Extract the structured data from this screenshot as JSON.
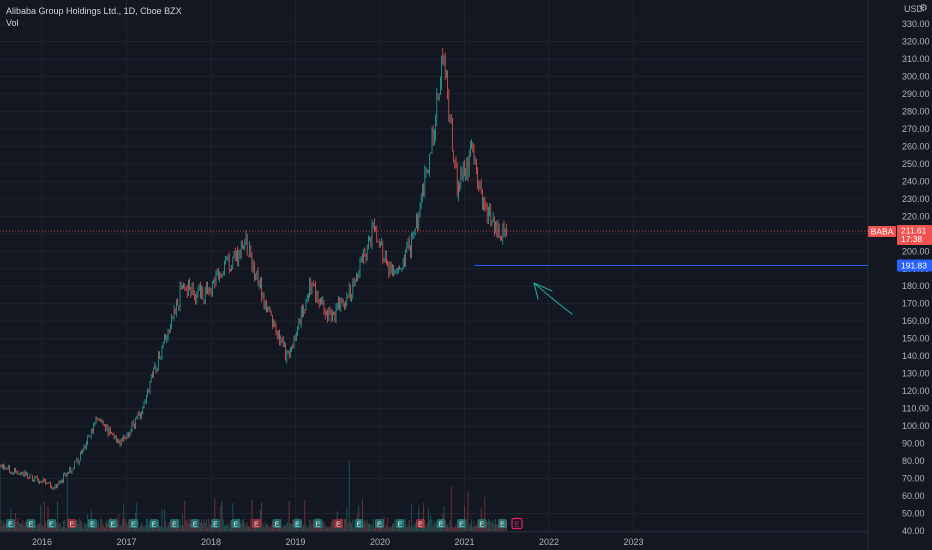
{
  "legend": {
    "title": "Alibaba Group Holdings Ltd., 1D, Cboe BZX",
    "volume_label": "Vol"
  },
  "price_axis": {
    "currency": "USD",
    "ticks": [
      "330.00",
      "320.00",
      "310.00",
      "300.00",
      "290.00",
      "280.00",
      "270.00",
      "260.00",
      "250.00",
      "240.00",
      "230.00",
      "220.00",
      "210.00",
      "200.00",
      "190.00",
      "180.00",
      "170.00",
      "160.00",
      "150.00",
      "140.00",
      "130.00",
      "120.00",
      "110.00",
      "100.00",
      "90.00",
      "80.00",
      "70.00",
      "60.00",
      "50.00",
      "40.00"
    ]
  },
  "time_axis": {
    "ticks": [
      "2016",
      "2017",
      "2018",
      "2019",
      "2020",
      "2021",
      "2022",
      "2023"
    ]
  },
  "symbol_tag": {
    "symbol": "BABA",
    "price": "211.61",
    "countdown": "17:38"
  },
  "hline_tag": {
    "price": "191.83"
  },
  "earnings_marker_label": "E",
  "icons": {
    "settings": "gear-icon",
    "annotation": "hand-drawn-arrow"
  },
  "colors": {
    "background": "#131722",
    "up": "#26a69a",
    "down": "#ef5350",
    "hline": "#2962ff",
    "arrow": "#26a69a"
  },
  "chart_data": {
    "type": "candlestick",
    "series_name": "BABA",
    "ylim": [
      40,
      335
    ],
    "price_key_points": {
      "x": [
        "2016-01",
        "2016-03",
        "2016-06",
        "2016-09",
        "2016-12",
        "2017-03",
        "2017-06",
        "2017-09",
        "2017-12",
        "2018-03",
        "2018-06",
        "2018-09",
        "2018-12",
        "2019-03",
        "2019-06",
        "2019-09",
        "2019-12",
        "2020-03",
        "2020-06",
        "2020-09",
        "2020-10",
        "2020-12",
        "2021-02",
        "2021-04",
        "2021-06",
        "2021-07"
      ],
      "close": [
        77,
        65,
        80,
        105,
        88,
        108,
        145,
        180,
        175,
        190,
        205,
        165,
        138,
        180,
        162,
        178,
        212,
        185,
        210,
        280,
        312,
        235,
        255,
        225,
        210,
        211.61
      ]
    },
    "horizontal_line": 191.83,
    "last_price": 211.61
  }
}
